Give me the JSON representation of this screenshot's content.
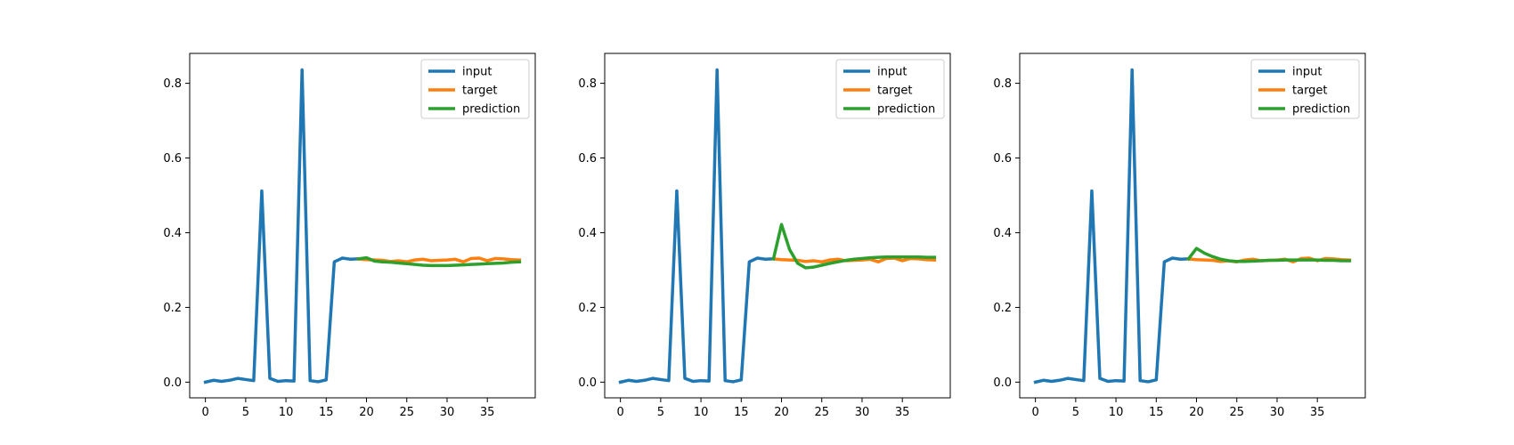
{
  "chart_data": [
    {
      "type": "line",
      "title": "",
      "xlabel": "",
      "ylabel": "",
      "xlim": [
        -1.95,
        40.95
      ],
      "ylim": [
        -0.042,
        0.88
      ],
      "xticks": [
        "0",
        "5",
        "10",
        "15",
        "20",
        "25",
        "30",
        "35"
      ],
      "yticks": [
        "0.0",
        "0.2",
        "0.4",
        "0.6",
        "0.8"
      ],
      "grid": false,
      "legend": "top-right",
      "series": [
        {
          "name": "input",
          "color": "#1f77b4",
          "x": [
            0,
            1,
            2,
            3,
            4,
            5,
            6,
            7,
            8,
            9,
            10,
            11,
            12,
            13,
            14,
            15,
            16,
            17,
            18,
            19
          ],
          "y": [
            0.0,
            0.005,
            0.002,
            0.005,
            0.01,
            0.007,
            0.004,
            0.512,
            0.01,
            0.002,
            0.004,
            0.003,
            0.836,
            0.004,
            0.001,
            0.006,
            0.322,
            0.332,
            0.329,
            0.33
          ]
        },
        {
          "name": "target",
          "color": "#ff7f0e",
          "x": [
            19,
            20,
            21,
            22,
            23,
            24,
            25,
            26,
            27,
            28,
            29,
            30,
            31,
            32,
            33,
            34,
            35,
            36,
            37,
            38,
            39
          ],
          "y": [
            0.33,
            0.328,
            0.327,
            0.326,
            0.323,
            0.325,
            0.322,
            0.327,
            0.329,
            0.325,
            0.326,
            0.327,
            0.329,
            0.322,
            0.331,
            0.332,
            0.325,
            0.331,
            0.33,
            0.328,
            0.327
          ]
        },
        {
          "name": "prediction",
          "color": "#2ca02c",
          "x": [
            19,
            20,
            21,
            22,
            23,
            24,
            25,
            26,
            27,
            28,
            29,
            30,
            31,
            32,
            33,
            34,
            35,
            36,
            37,
            38,
            39
          ],
          "y": [
            0.33,
            0.333,
            0.324,
            0.322,
            0.321,
            0.319,
            0.317,
            0.315,
            0.313,
            0.312,
            0.312,
            0.312,
            0.313,
            0.314,
            0.315,
            0.316,
            0.317,
            0.318,
            0.319,
            0.321,
            0.322
          ]
        }
      ]
    },
    {
      "type": "line",
      "title": "",
      "xlabel": "",
      "ylabel": "",
      "xlim": [
        -1.95,
        40.95
      ],
      "ylim": [
        -0.042,
        0.88
      ],
      "xticks": [
        "0",
        "5",
        "10",
        "15",
        "20",
        "25",
        "30",
        "35"
      ],
      "yticks": [
        "0.0",
        "0.2",
        "0.4",
        "0.6",
        "0.8"
      ],
      "grid": false,
      "legend": "top-right",
      "series": [
        {
          "name": "input",
          "color": "#1f77b4",
          "x": [
            0,
            1,
            2,
            3,
            4,
            5,
            6,
            7,
            8,
            9,
            10,
            11,
            12,
            13,
            14,
            15,
            16,
            17,
            18,
            19
          ],
          "y": [
            0.0,
            0.005,
            0.002,
            0.005,
            0.01,
            0.007,
            0.004,
            0.512,
            0.01,
            0.002,
            0.004,
            0.003,
            0.836,
            0.004,
            0.001,
            0.006,
            0.322,
            0.332,
            0.329,
            0.33
          ]
        },
        {
          "name": "target",
          "color": "#ff7f0e",
          "x": [
            19,
            20,
            21,
            22,
            23,
            24,
            25,
            26,
            27,
            28,
            29,
            30,
            31,
            32,
            33,
            34,
            35,
            36,
            37,
            38,
            39
          ],
          "y": [
            0.33,
            0.328,
            0.327,
            0.326,
            0.323,
            0.325,
            0.322,
            0.327,
            0.329,
            0.325,
            0.326,
            0.327,
            0.329,
            0.322,
            0.331,
            0.332,
            0.325,
            0.331,
            0.33,
            0.328,
            0.327
          ]
        },
        {
          "name": "prediction",
          "color": "#2ca02c",
          "x": [
            19,
            20,
            21,
            22,
            23,
            24,
            25,
            26,
            27,
            28,
            29,
            30,
            31,
            32,
            33,
            34,
            35,
            36,
            37,
            38,
            39
          ],
          "y": [
            0.33,
            0.422,
            0.355,
            0.318,
            0.306,
            0.308,
            0.313,
            0.318,
            0.322,
            0.326,
            0.329,
            0.331,
            0.333,
            0.334,
            0.335,
            0.335,
            0.335,
            0.335,
            0.335,
            0.334,
            0.334
          ]
        }
      ]
    },
    {
      "type": "line",
      "title": "",
      "xlabel": "",
      "ylabel": "",
      "xlim": [
        -1.95,
        40.95
      ],
      "ylim": [
        -0.042,
        0.88
      ],
      "xticks": [
        "0",
        "5",
        "10",
        "15",
        "20",
        "25",
        "30",
        "35"
      ],
      "yticks": [
        "0.0",
        "0.2",
        "0.4",
        "0.6",
        "0.8"
      ],
      "grid": false,
      "legend": "top-right",
      "series": [
        {
          "name": "input",
          "color": "#1f77b4",
          "x": [
            0,
            1,
            2,
            3,
            4,
            5,
            6,
            7,
            8,
            9,
            10,
            11,
            12,
            13,
            14,
            15,
            16,
            17,
            18,
            19
          ],
          "y": [
            0.0,
            0.005,
            0.002,
            0.005,
            0.01,
            0.007,
            0.004,
            0.512,
            0.01,
            0.002,
            0.004,
            0.003,
            0.836,
            0.004,
            0.001,
            0.006,
            0.322,
            0.332,
            0.329,
            0.33
          ]
        },
        {
          "name": "target",
          "color": "#ff7f0e",
          "x": [
            19,
            20,
            21,
            22,
            23,
            24,
            25,
            26,
            27,
            28,
            29,
            30,
            31,
            32,
            33,
            34,
            35,
            36,
            37,
            38,
            39
          ],
          "y": [
            0.33,
            0.328,
            0.327,
            0.326,
            0.323,
            0.325,
            0.322,
            0.327,
            0.329,
            0.325,
            0.326,
            0.327,
            0.329,
            0.322,
            0.331,
            0.332,
            0.325,
            0.331,
            0.33,
            0.328,
            0.327
          ]
        },
        {
          "name": "prediction",
          "color": "#2ca02c",
          "x": [
            19,
            20,
            21,
            22,
            23,
            24,
            25,
            26,
            27,
            28,
            29,
            30,
            31,
            32,
            33,
            34,
            35,
            36,
            37,
            38,
            39
          ],
          "y": [
            0.33,
            0.358,
            0.345,
            0.336,
            0.329,
            0.325,
            0.323,
            0.323,
            0.324,
            0.325,
            0.326,
            0.326,
            0.327,
            0.327,
            0.327,
            0.327,
            0.327,
            0.326,
            0.326,
            0.325,
            0.325
          ]
        }
      ]
    }
  ]
}
